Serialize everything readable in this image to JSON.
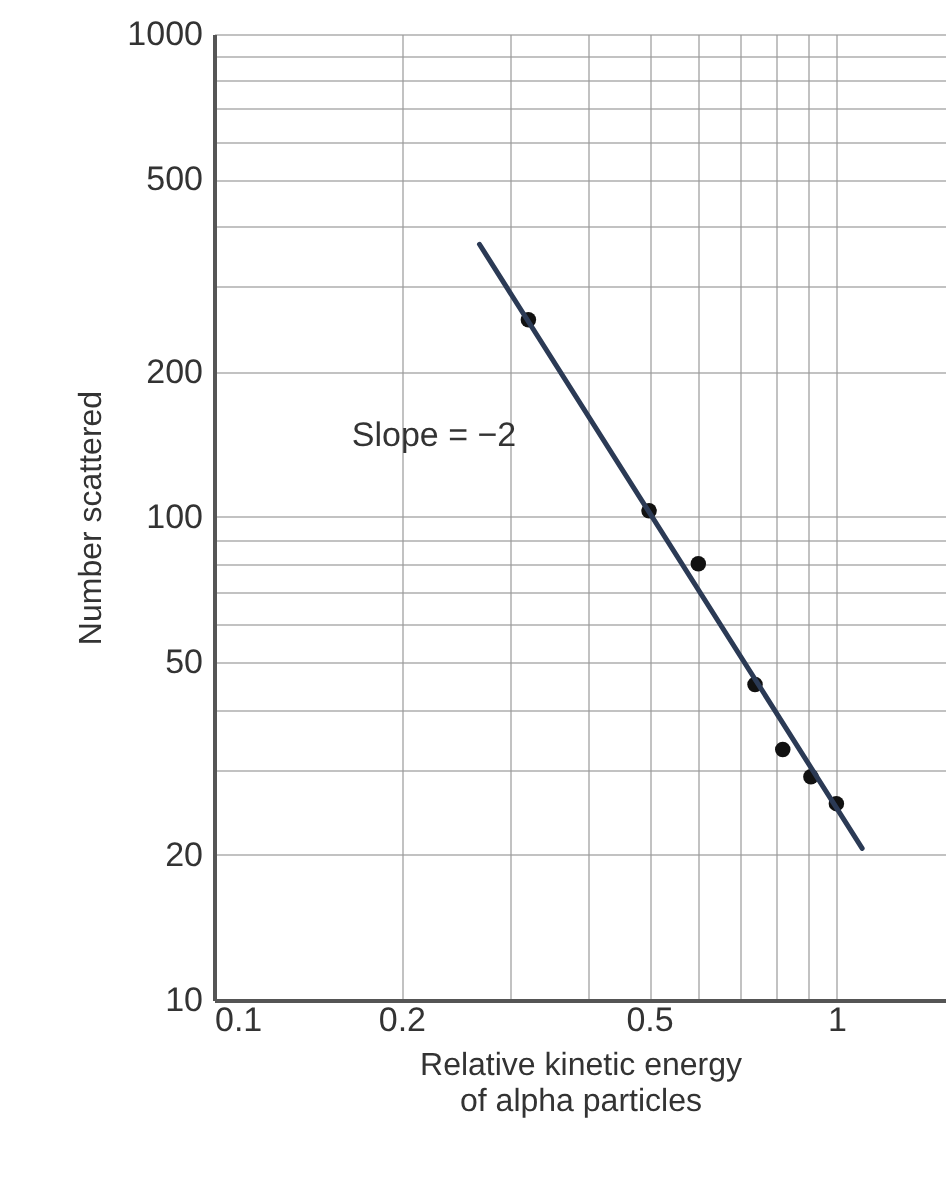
{
  "chart_data": {
    "type": "scatter",
    "xlabel": "Relative kinetic energy\nof alpha particles",
    "ylabel": "Number scattered",
    "log": "xy",
    "grid": true,
    "marker": "circle",
    "xlim": [
      0.1,
      1.5
    ],
    "ylim": [
      10,
      1000
    ],
    "xticks": [
      0.1,
      0.2,
      {
        "value": 0.3,
        "label": null
      },
      {
        "value": 0.4,
        "label": null
      },
      0.5,
      {
        "value": 0.6,
        "label": null
      },
      {
        "value": 0.7,
        "label": null
      },
      {
        "value": 0.8,
        "label": null
      },
      {
        "value": 0.9,
        "label": null
      },
      1
    ],
    "yticks": [
      10,
      20,
      {
        "value": 30,
        "label": null
      },
      {
        "value": 40,
        "label": null
      },
      50,
      {
        "value": 60,
        "label": null
      },
      {
        "value": 70,
        "label": null
      },
      {
        "value": 80,
        "label": null
      },
      {
        "value": 90,
        "label": null
      },
      100,
      200,
      {
        "value": 300,
        "label": null
      },
      {
        "value": 400,
        "label": null
      },
      500,
      {
        "value": 600,
        "label": null
      },
      {
        "value": 700,
        "label": null
      },
      {
        "value": 800,
        "label": null
      },
      {
        "value": 900,
        "label": null
      },
      1000
    ],
    "series": [
      {
        "color": "#111111",
        "x": [
          0.32,
          0.5,
          0.6,
          0.74,
          0.82,
          0.91,
          1
        ],
        "values": [
          256,
          103,
          80,
          45,
          33,
          29,
          25.5
        ]
      },
      {
        "type": "line",
        "color": "#2b3a55",
        "marker": "none",
        "line_style": "solid",
        "x": [
          0.267,
          1.1
        ],
        "values": [
          367,
          20.6
        ]
      }
    ],
    "annotations": [
      "Slope = −2"
    ]
  }
}
